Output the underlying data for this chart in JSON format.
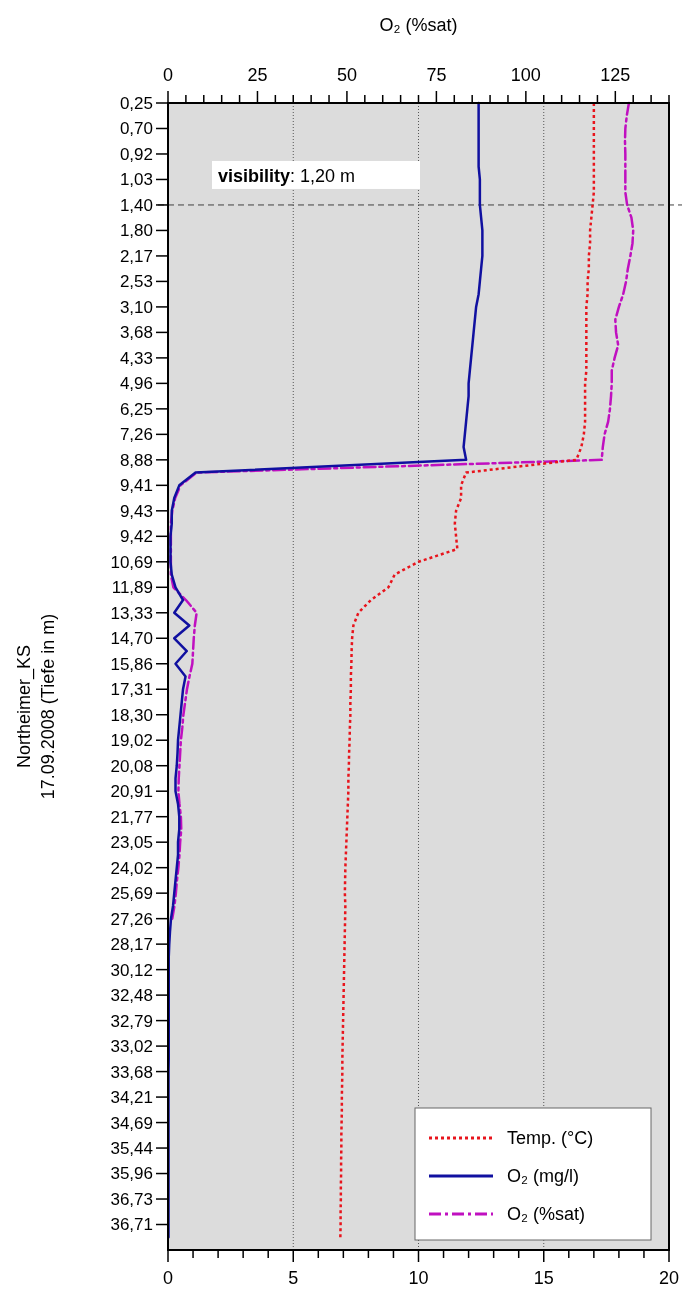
{
  "chart_data": {
    "type": "line",
    "orientation": "horizontal",
    "categories": [
      "0,25",
      null,
      "0,70",
      null,
      "0,92",
      null,
      "1,03",
      null,
      "1,40",
      null,
      "1,80",
      null,
      "2,17",
      null,
      "2,53",
      null,
      "3,10",
      null,
      "3,68",
      null,
      "4,33",
      null,
      "4,96",
      null,
      "6,25",
      null,
      "7,26",
      null,
      "8,88",
      null,
      "9,41",
      null,
      "9,43",
      null,
      "9,42",
      null,
      "10,69",
      null,
      "11,89",
      null,
      "13,33",
      null,
      "14,70",
      null,
      "15,86",
      null,
      "17,31",
      null,
      "18,30",
      null,
      "19,02",
      null,
      "20,08",
      null,
      "20,91",
      null,
      "21,77",
      null,
      "23,05",
      null,
      "24,02",
      null,
      "25,69",
      null,
      "27,26",
      null,
      "28,17",
      null,
      "30,12",
      null,
      "32,48",
      null,
      "32,79",
      null,
      "33,02",
      null,
      "33,68",
      null,
      "34,21",
      null,
      "34,69",
      null,
      "35,44",
      null,
      "35,96",
      null,
      "36,73",
      null,
      "36,71",
      null,
      null
    ],
    "ylabel": "Northeimer_KS\n17.09.2008 (Tiefe in m)",
    "x2label": "O₂ (%sat)",
    "xlim": [
      0,
      20
    ],
    "xticks": [
      0,
      {
        "value": 1,
        "label": null
      },
      {
        "value": 2,
        "label": null
      },
      {
        "value": 3,
        "label": null
      },
      {
        "value": 4,
        "label": null
      },
      5,
      {
        "value": 6,
        "label": null
      },
      {
        "value": 7,
        "label": null
      },
      {
        "value": 8,
        "label": null
      },
      {
        "value": 9,
        "label": null
      },
      10,
      {
        "value": 11,
        "label": null
      },
      {
        "value": 12,
        "label": null
      },
      {
        "value": 13,
        "label": null
      },
      {
        "value": 14,
        "label": null
      },
      15,
      {
        "value": 16,
        "label": null
      },
      {
        "value": 17,
        "label": null
      },
      {
        "value": 18,
        "label": null
      },
      {
        "value": 19,
        "label": null
      },
      20
    ],
    "x2lim": [
      0,
      140
    ],
    "x2ticks": [
      0,
      {
        "value": 5,
        "label": null
      },
      {
        "value": 10,
        "label": null
      },
      {
        "value": 15,
        "label": null
      },
      {
        "value": 20,
        "label": null
      },
      25,
      {
        "value": 30,
        "label": null
      },
      {
        "value": 35,
        "label": null
      },
      {
        "value": 40,
        "label": null
      },
      {
        "value": 45,
        "label": null
      },
      50,
      {
        "value": 55,
        "label": null
      },
      {
        "value": 60,
        "label": null
      },
      {
        "value": 65,
        "label": null
      },
      {
        "value": 70,
        "label": null
      },
      75,
      {
        "value": 80,
        "label": null
      },
      {
        "value": 85,
        "label": null
      },
      {
        "value": 90,
        "label": null
      },
      {
        "value": 95,
        "label": null
      },
      100,
      {
        "value": 105,
        "label": null
      },
      {
        "value": 110,
        "label": null
      },
      {
        "value": 115,
        "label": null
      },
      {
        "value": 120,
        "label": null
      },
      125,
      {
        "value": 130,
        "label": null
      },
      {
        "value": 135,
        "label": null
      },
      {
        "value": 140,
        "label": null
      }
    ],
    "grid": "x",
    "legend": "bottom right",
    "ref_lines": [
      {
        "axis": "y",
        "value": "1,40",
        "label": "visibility: 1,20 m",
        "color": "#404040",
        "line_style": "dashed"
      }
    ],
    "series": [
      {
        "name": "Temp. (°C)",
        "color": "#e8141c",
        "line_style": "dotted",
        "values": [
          17.0,
          17.0,
          17.0,
          17.0,
          17.0,
          17.0,
          17.0,
          17.0,
          16.95,
          16.9,
          16.85,
          16.85,
          16.8,
          16.8,
          16.75,
          16.75,
          16.7,
          16.7,
          16.7,
          16.7,
          16.7,
          16.7,
          16.65,
          16.65,
          16.65,
          16.65,
          16.6,
          16.5,
          16.3,
          11.9,
          11.7,
          11.7,
          11.5,
          11.45,
          11.5,
          11.55,
          10.0,
          9.05,
          8.8,
          8.1,
          7.6,
          7.4,
          7.35,
          7.33,
          7.32,
          7.3,
          7.3,
          7.28,
          7.28,
          7.26,
          7.25,
          7.23,
          7.22,
          7.2,
          7.2,
          7.18,
          7.16,
          7.14,
          7.12,
          7.1,
          7.08,
          7.07,
          7.06,
          7.08,
          7.07,
          7.06,
          7.05,
          7.04,
          7.03,
          7.02,
          7.01,
          7.0,
          6.99,
          6.98,
          6.97,
          6.96,
          6.96,
          6.95,
          6.94,
          6.94,
          6.93,
          6.92,
          6.92,
          6.91,
          6.91,
          6.9,
          6.9,
          6.89,
          6.89,
          6.88,
          null
        ]
      },
      {
        "name": "O₂ (mg/l)",
        "color": "#1010a0",
        "line_style": "solid",
        "values": [
          12.4,
          12.4,
          12.4,
          12.4,
          12.4,
          12.4,
          12.45,
          12.45,
          12.45,
          12.5,
          12.55,
          12.55,
          12.55,
          12.5,
          12.45,
          12.4,
          12.3,
          12.25,
          12.2,
          12.15,
          12.1,
          12.05,
          12.0,
          12.0,
          11.95,
          11.9,
          11.85,
          11.8,
          11.9,
          1.1,
          0.45,
          0.25,
          0.15,
          0.15,
          0.1,
          0.1,
          0.1,
          0.15,
          0.3,
          0.6,
          0.25,
          0.85,
          0.25,
          0.75,
          0.3,
          0.7,
          0.6,
          0.55,
          0.5,
          0.45,
          0.4,
          0.38,
          0.35,
          0.3,
          0.3,
          0.4,
          0.45,
          0.45,
          0.4,
          0.4,
          0.35,
          0.3,
          0.25,
          0.2,
          0.12,
          0.08,
          0.05,
          0.03,
          0.03,
          0.03,
          0.03,
          0.03,
          0.03,
          0.03,
          0.03,
          0.03,
          0.02,
          0.02,
          0.02,
          0.02,
          0.02,
          0.02,
          0.02,
          0.02,
          0.02,
          0.02,
          0.02,
          0.02,
          0.02,
          0.02,
          null
        ]
      },
      {
        "name": "O₂ (%sat)",
        "color": "#c010c0",
        "line_style": "dashdot",
        "axis": "x2",
        "values": [
          128.8,
          128.2,
          127.8,
          127.7,
          127.8,
          127.8,
          127.8,
          127.8,
          128.3,
          129.5,
          130.0,
          129.8,
          129.2,
          128.5,
          128.0,
          127.2,
          126.0,
          125.0,
          125.2,
          125.8,
          124.8,
          124.0,
          124.0,
          123.8,
          123.5,
          123.0,
          122.0,
          121.5,
          121.2,
          8.0,
          3.5,
          2.0,
          1.2,
          0.8,
          0.8,
          0.8,
          0.8,
          0.8,
          1.5,
          5.0,
          8.0,
          7.5,
          7.2,
          7.0,
          6.8,
          6.0,
          5.3,
          4.8,
          4.3,
          4.0,
          3.6,
          3.4,
          3.2,
          3.0,
          2.9,
          3.2,
          3.6,
          3.7,
          3.4,
          3.2,
          2.9,
          2.5,
          2.2,
          1.8,
          1.2,
          null,
          null,
          null,
          null,
          null,
          null,
          null,
          null,
          null,
          null,
          null,
          null,
          null,
          null,
          null,
          null,
          null,
          null,
          null,
          null,
          null,
          null,
          null,
          null,
          null,
          null
        ]
      }
    ]
  }
}
